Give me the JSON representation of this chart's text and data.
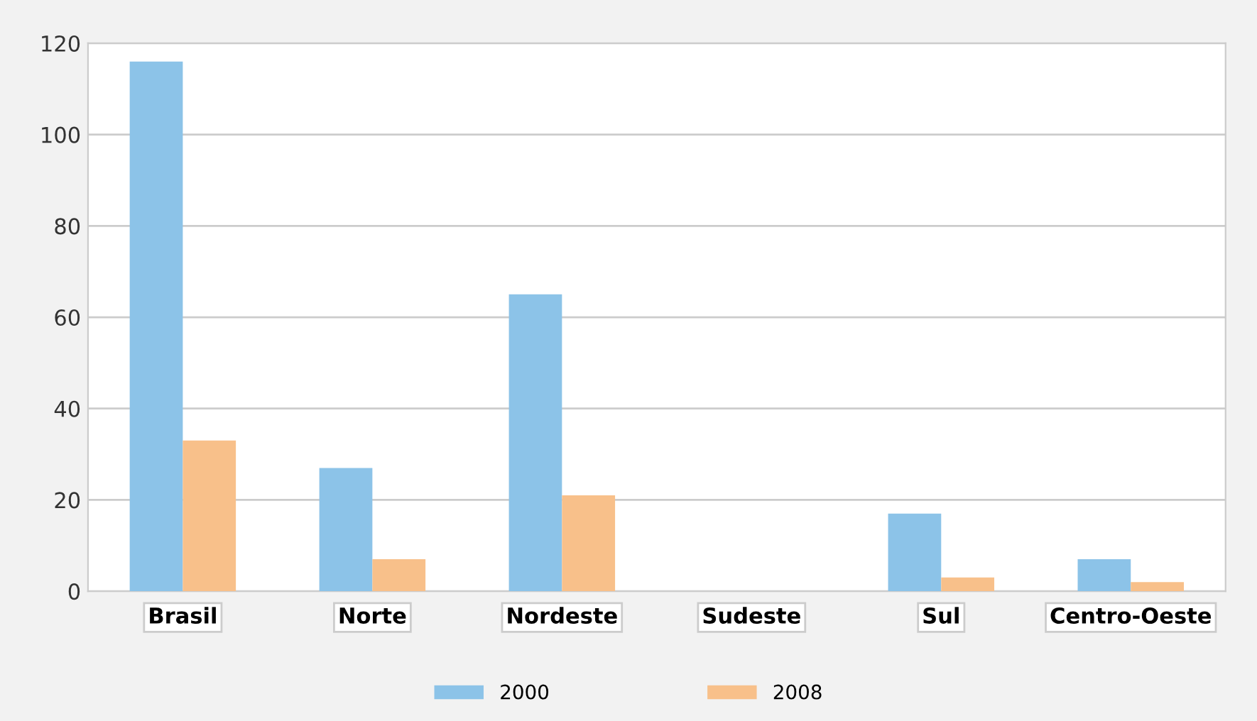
{
  "chart_data": {
    "type": "bar",
    "categories": [
      "Brasil",
      "Norte",
      "Nordeste",
      "Sudeste",
      "Sul",
      "Centro-Oeste"
    ],
    "series": [
      {
        "name": "2000",
        "color": "#8cc3e8",
        "values": [
          116,
          27,
          65,
          0,
          17,
          7
        ]
      },
      {
        "name": "2008",
        "color": "#f8c08a",
        "values": [
          33,
          7,
          21,
          0,
          3,
          2
        ]
      }
    ],
    "ylim": [
      0,
      120
    ],
    "yticks": [
      0,
      20,
      40,
      60,
      80,
      100,
      120
    ],
    "grid": "y",
    "legend": "bottom"
  }
}
